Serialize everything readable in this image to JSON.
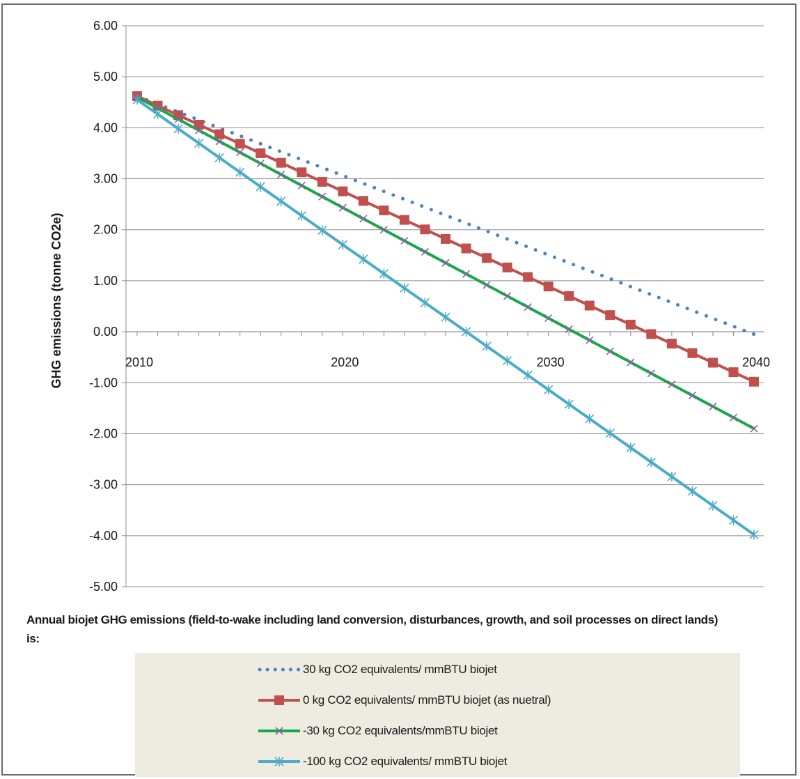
{
  "chart_data": {
    "type": "line",
    "title": "",
    "xlabel": "",
    "ylabel": "GHG emissions (tonne CO2e)",
    "xlim": [
      2010,
      2040
    ],
    "ylim": [
      -5,
      6
    ],
    "x_ticks": [
      2010,
      2020,
      2030,
      2040
    ],
    "x_tick_labels": [
      "2010",
      "2020",
      "2030",
      "2040"
    ],
    "y_ticks": [
      6,
      5,
      4,
      3,
      2,
      1,
      0,
      -1,
      -2,
      -3,
      -4,
      -5
    ],
    "y_tick_labels": [
      "6.00",
      "5.00",
      "4.00",
      "3.00",
      "2.00",
      "1.00",
      "0.00",
      "-1.00",
      "-2.00",
      "-3.00",
      "-4.00",
      "-5.00"
    ],
    "grid": "horizontal",
    "legend_position": "bottom",
    "legend_title": "Annual biojet GHG emissions (field-to-wake including land conversion, disturbances, growth, and soil processes on direct lands)  is:",
    "x": [
      2010,
      2011,
      2012,
      2013,
      2014,
      2015,
      2016,
      2017,
      2018,
      2019,
      2020,
      2021,
      2022,
      2023,
      2024,
      2025,
      2026,
      2027,
      2028,
      2029,
      2030,
      2031,
      2032,
      2033,
      2034,
      2035,
      2036,
      2037,
      2038,
      2039,
      2040
    ],
    "series": [
      {
        "name": "30 kg CO2 equivalents/ mmBTU biojet",
        "color": "#4f81bd",
        "style": "dotted",
        "start": 4.62,
        "end": -0.05
      },
      {
        "name": "0 kg CO2 equivalents/ mmBTU biojet (as nuetral)",
        "color": "#c0504d",
        "style": "square-markers",
        "start": 4.62,
        "end": -0.98
      },
      {
        "name": "-30 kg CO2 equivalents/mmBTU biojet",
        "color": "#1aa64a",
        "style": "x-markers",
        "start": 4.6,
        "end": -1.9
      },
      {
        "name": "-100 kg CO2 equivalents/ mmBTU biojet",
        "color": "#4bacc6",
        "style": "star-markers",
        "start": 4.55,
        "end": -3.98
      }
    ]
  }
}
